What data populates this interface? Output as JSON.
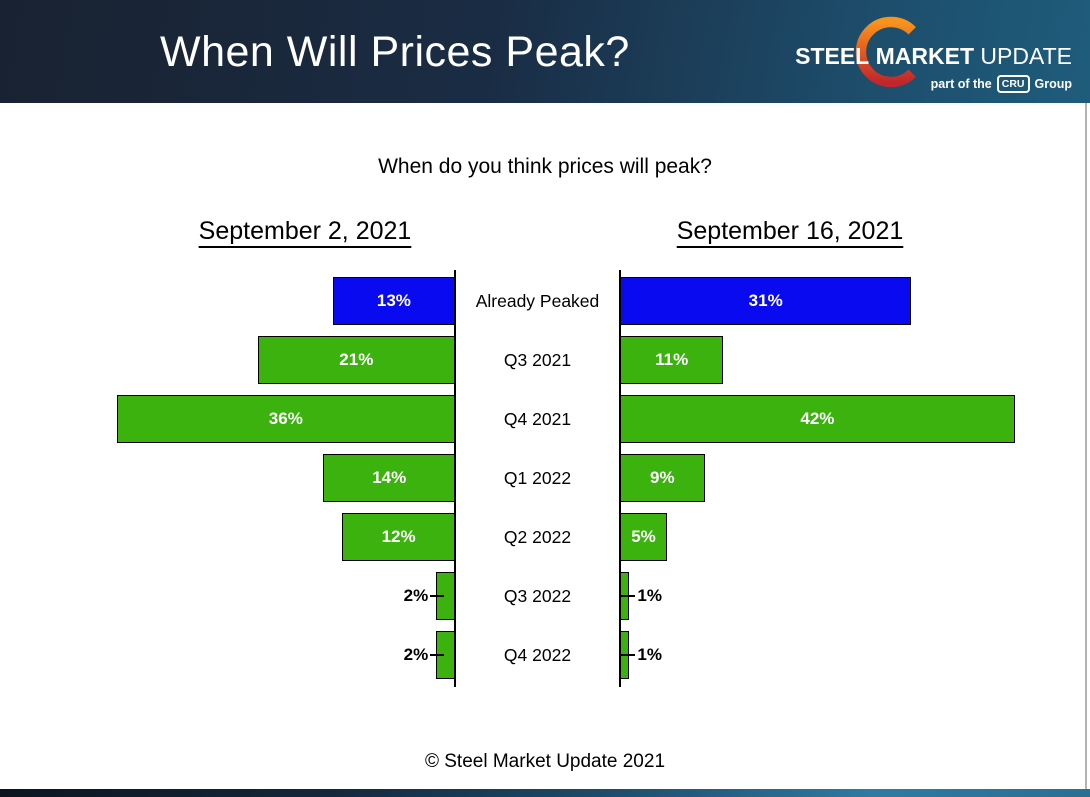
{
  "header": {
    "title": "When Will Prices Peak?",
    "logo": {
      "word1": "STEEL",
      "word2": "MARKET",
      "word3": "UPDATE",
      "tagline_prefix": "part of the",
      "badge": "CRU",
      "tagline_suffix": "Group"
    }
  },
  "chart_data": {
    "type": "bar",
    "variant": "butterfly",
    "title": "When do you think prices will peak?",
    "categories": [
      "Already Peaked",
      "Q3 2021",
      "Q4 2021",
      "Q1 2022",
      "Q2 2022",
      "Q3 2022",
      "Q4 2022"
    ],
    "series": [
      {
        "name": "September 2, 2021",
        "direction": "left",
        "values": [
          13,
          21,
          36,
          14,
          12,
          2,
          2
        ]
      },
      {
        "name": "September 16, 2021",
        "direction": "right",
        "values": [
          31,
          11,
          42,
          9,
          5,
          1,
          1
        ]
      }
    ],
    "value_suffix": "%",
    "bar_colors": {
      "already_peaked": "#0a0af0",
      "default": "#3cb20e"
    },
    "value_label_color_inside": "#ffffff",
    "value_label_color_outside": "#000000",
    "legend_position": "none",
    "grid": false
  },
  "footer": {
    "copyright": "© Steel Market Update 2021"
  },
  "colors": {
    "header_gradient": [
      "#192231",
      "#1a2c44",
      "#1d4e6c",
      "#1f5c7c"
    ],
    "bottom_bar_gradient": [
      "#0c1420",
      "#14273c",
      "#1e4a68",
      "#2e7ba4",
      "#2a6f94"
    ],
    "logo_crescent_top": "#f7941e",
    "logo_crescent_mid": "#e2541f",
    "logo_crescent_bottom": "#c0272d"
  }
}
